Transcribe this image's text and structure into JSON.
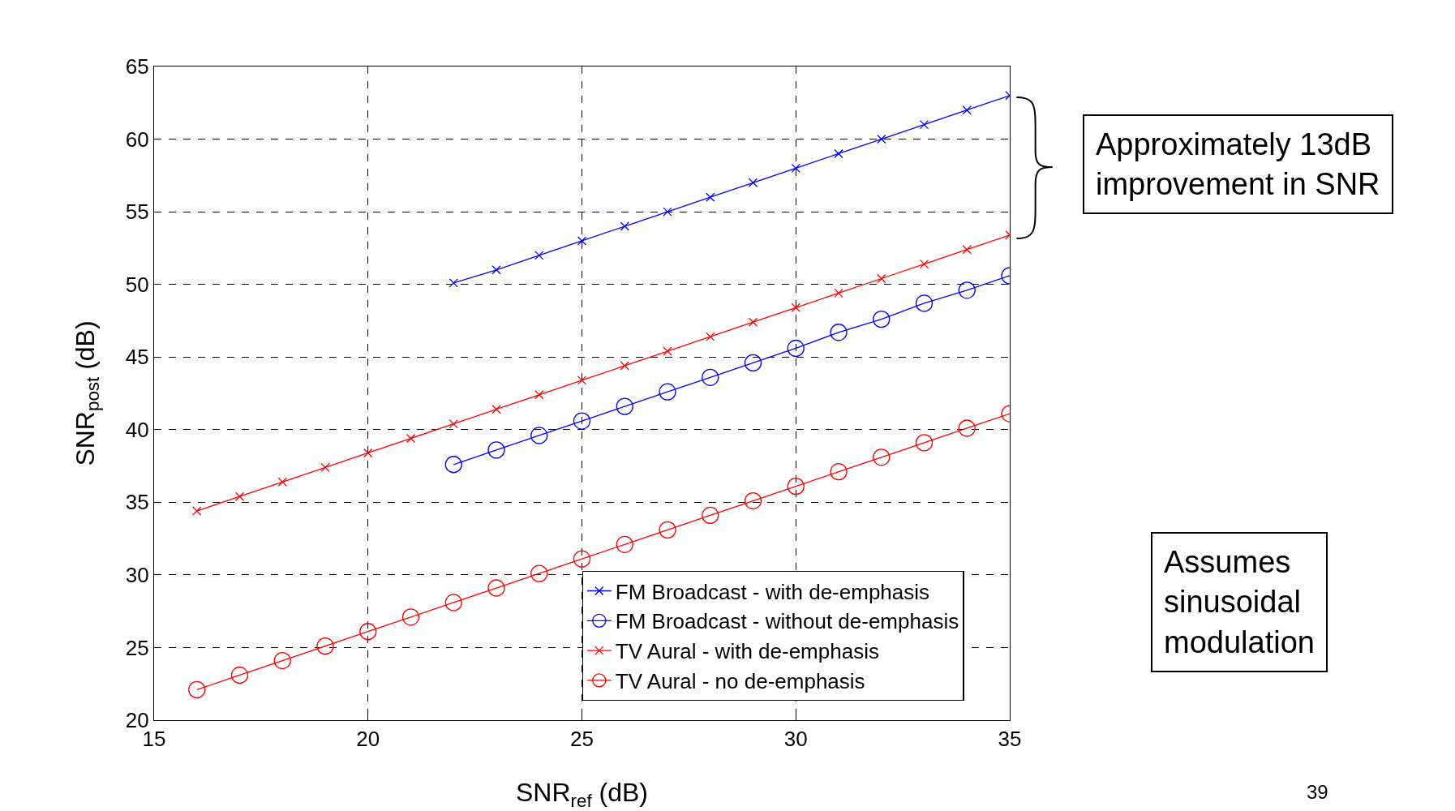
{
  "chart_data": {
    "type": "line",
    "xlabel": "SNR$_{ref}$ (dB)",
    "ylabel": "SNR$_{post}$ (dB)",
    "xlim": [
      15,
      35
    ],
    "xticks": [
      15,
      20,
      25,
      30,
      35
    ],
    "ylim": [
      20,
      65
    ],
    "yticks": [
      20,
      25,
      30,
      35,
      40,
      45,
      50,
      55,
      60,
      65
    ],
    "grid": true,
    "legend": "bottom right",
    "line_style": "solid",
    "series": [
      {
        "name": "FM Broadcast - with de-emphasis",
        "color": "#0000ff",
        "marker": "cross",
        "x": [
          22,
          23,
          24,
          25,
          26,
          27,
          28,
          29,
          30,
          31,
          32,
          33,
          34,
          35
        ],
        "values": [
          50.1,
          51,
          52,
          53,
          54,
          55,
          56,
          57,
          58,
          59,
          60,
          61,
          62,
          63
        ]
      },
      {
        "name": "FM Broadcast - without de-emphasis",
        "color": "#0000ff",
        "marker": "circle",
        "x": [
          22,
          23,
          24,
          25,
          26,
          27,
          28,
          29,
          30,
          31,
          32,
          33,
          34,
          35
        ],
        "values": [
          37.6,
          38.6,
          39.6,
          40.6,
          41.6,
          42.6,
          43.6,
          44.6,
          45.6,
          46.7,
          47.6,
          48.7,
          49.6,
          50.6
        ]
      },
      {
        "name": "TV Aural - with de-emphasis",
        "color": "#ff0000",
        "marker": "cross",
        "x": [
          16,
          17,
          18,
          19,
          20,
          21,
          22,
          23,
          24,
          25,
          26,
          27,
          28,
          29,
          30,
          31,
          32,
          33,
          34,
          35
        ],
        "values": [
          34.4,
          35.4,
          36.4,
          37.4,
          38.4,
          39.4,
          40.4,
          41.4,
          42.4,
          43.4,
          44.4,
          45.4,
          46.4,
          47.4,
          48.4,
          49.4,
          50.4,
          51.4,
          52.4,
          53.4
        ]
      },
      {
        "name": "TV Aural - no de-emphasis",
        "color": "#ff0000",
        "marker": "circle",
        "x": [
          16,
          17,
          18,
          19,
          20,
          21,
          22,
          23,
          24,
          25,
          26,
          27,
          28,
          29,
          30,
          31,
          32,
          33,
          34,
          35
        ],
        "values": [
          22.1,
          23.1,
          24.1,
          25.1,
          26.1,
          27.1,
          28.1,
          29.1,
          30.1,
          31.1,
          32.1,
          33.1,
          34.1,
          35.1,
          36.1,
          37.1,
          38.1,
          39.1,
          40.1,
          41.1
        ]
      }
    ],
    "annotations": [
      "Approximately 13dB\nimprovement in SNR",
      "Assumes\nsinusoidal\nmodulation",
      "39"
    ]
  }
}
